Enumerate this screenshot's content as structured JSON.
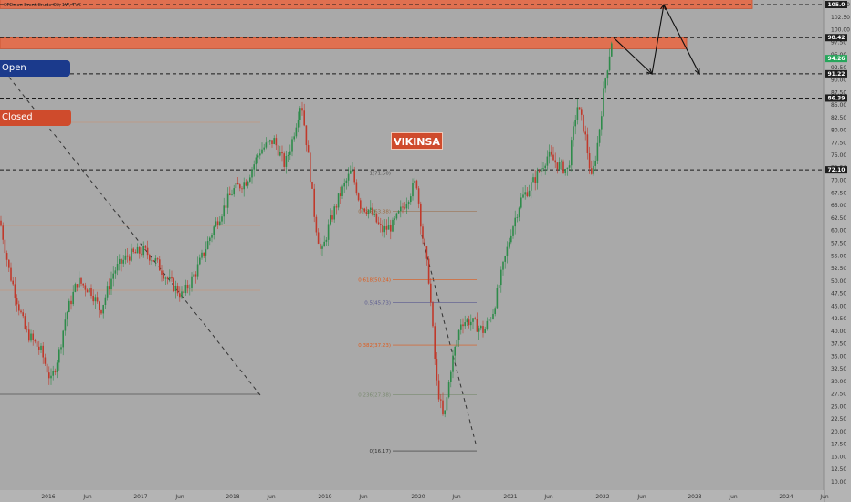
{
  "header": {
    "symbol_title": "CFDs on Brent Crude Oil, 1W, TVC"
  },
  "buttons": {
    "open_label": "Open",
    "closed_label": "Closed"
  },
  "brand_label": "VIKINSA",
  "price_axis": {
    "ticks": [
      "105.00",
      "102.50",
      "100.00",
      "97.50",
      "95.00",
      "92.50",
      "90.00",
      "87.50",
      "85.00",
      "82.50",
      "80.00",
      "77.50",
      "75.00",
      "72.50",
      "70.00",
      "67.50",
      "65.00",
      "62.50",
      "60.00",
      "57.50",
      "55.00",
      "52.50",
      "50.00",
      "47.50",
      "45.00",
      "42.50",
      "40.00",
      "37.50",
      "35.00",
      "32.50",
      "30.00",
      "27.50",
      "25.00",
      "22.50",
      "20.00",
      "17.50",
      "15.00",
      "12.50",
      "10.00"
    ],
    "price_labels": [
      {
        "value": 105.0,
        "text": "105.0",
        "color": "#ffffff",
        "bg": "#1e1e1e"
      },
      {
        "value": 98.42,
        "text": "98.42",
        "color": "#ffffff",
        "bg": "#1e1e1e"
      },
      {
        "value": 94.26,
        "text": "94.26",
        "color": "#ffffff",
        "bg": "#26a65b"
      },
      {
        "value": 91.22,
        "text": "91.22",
        "color": "#ffffff",
        "bg": "#1e1e1e"
      },
      {
        "value": 86.39,
        "text": "86.39",
        "color": "#ffffff",
        "bg": "#1e1e1e"
      },
      {
        "value": 72.1,
        "text": "72.10",
        "color": "#ffffff",
        "bg": "#1e1e1e"
      }
    ]
  },
  "time_axis": {
    "ticks": [
      "2016",
      "Jun",
      "2017",
      "Jun",
      "2018",
      "Jun",
      "2019",
      "Jun",
      "2020",
      "Jun",
      "2021",
      "Jun",
      "2022",
      "Jun",
      "2023",
      "Jun",
      "2024",
      "Jun"
    ]
  },
  "fibonacci": [
    {
      "label": "1(71.50)",
      "color": "#555555"
    },
    {
      "label": "0.786(63.88)",
      "color": "#9a6a40"
    },
    {
      "label": "0.618(50.24)",
      "color": "#e05a1a"
    },
    {
      "label": "0.5(45.73)",
      "color": "#5a5a90"
    },
    {
      "label": "0.382(37.23)",
      "color": "#e05a1a"
    },
    {
      "label": "0.236(27.38)",
      "color": "#7a8a70"
    },
    {
      "label": "0(16.17)",
      "color": "#333333"
    }
  ],
  "colors": {
    "bull": "#2e8b4a",
    "bear": "#c0392b",
    "zone": "#e07050",
    "background": "#a9a9a9"
  },
  "chart_data": {
    "type": "candlestick",
    "title": "CFDs on Brent Crude Oil, 1W, TVC",
    "ylim": [
      8.5,
      106.5
    ],
    "horizontal_levels": [
      105.0,
      98.42,
      91.22,
      86.39,
      72.1
    ],
    "resistance_zones": [
      [
        104.2,
        106.0
      ],
      [
        96.2,
        98.4
      ]
    ],
    "x": [
      "2016",
      "Jun 2016",
      "2017",
      "Jun 2017",
      "2018",
      "Jun 2018",
      "2019",
      "Jun 2019",
      "2020",
      "Apr 2020",
      "Jun 2020",
      "2021",
      "Jun 2021",
      "Oct 2021",
      "2022",
      "Mar 2022"
    ],
    "values": [
      31,
      48,
      55,
      47,
      68,
      73,
      55,
      66,
      64,
      20,
      40,
      53,
      73,
      85,
      80,
      98
    ],
    "fib_levels": [
      71.5,
      63.88,
      50.24,
      45.73,
      37.23,
      27.38,
      16.17
    ],
    "projection": [
      98.4,
      91.2,
      105.0,
      91.2
    ]
  }
}
